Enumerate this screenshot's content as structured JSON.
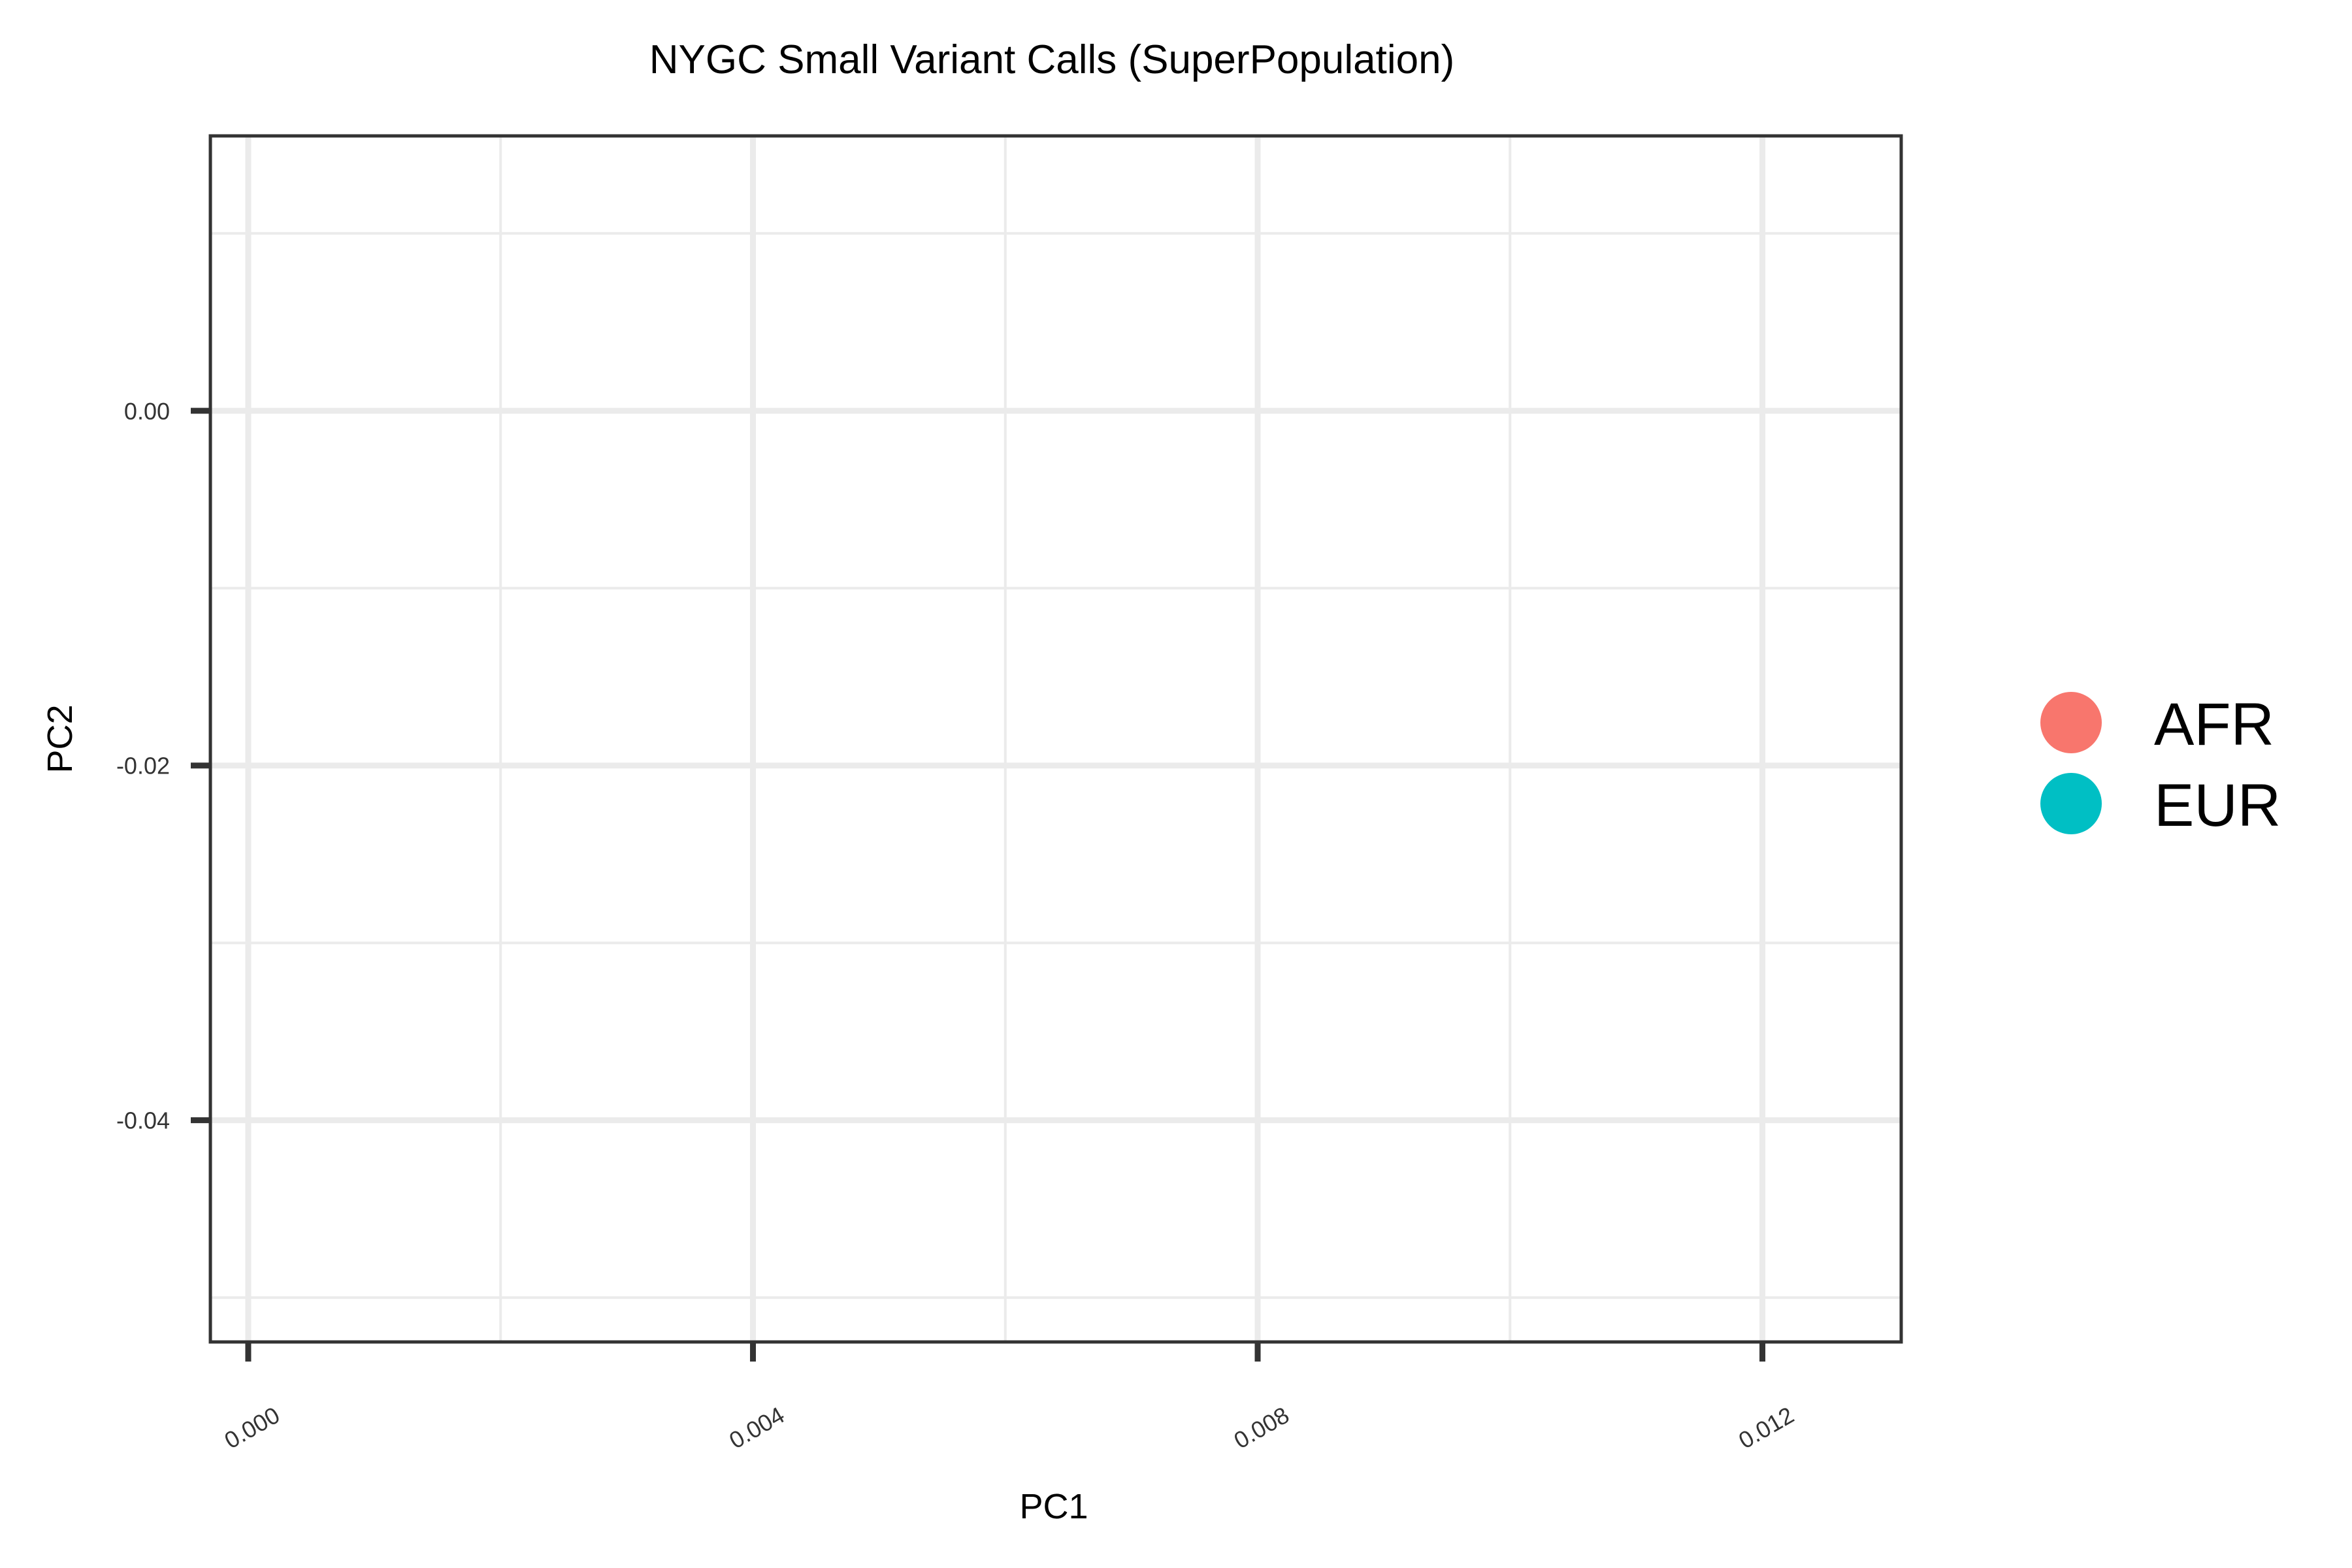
{
  "chart_data": {
    "type": "scatter",
    "title": "NYGC Small Variant Calls (SuperPopulation)",
    "xlabel": "PC1",
    "ylabel": "PC2",
    "xlim": [
      -0.0003,
      0.0131
    ],
    "ylim": [
      -0.0525,
      0.0155
    ],
    "x_ticks": [
      0.0,
      0.004,
      0.008,
      0.012
    ],
    "x_tick_labels": [
      "0.000",
      "0.004",
      "0.008",
      "0.012"
    ],
    "x_minor_ticks": [
      0.002,
      0.006,
      0.01
    ],
    "y_ticks": [
      0.0,
      -0.02,
      -0.04
    ],
    "y_tick_labels": [
      "0.00",
      "-0.02",
      "-0.04"
    ],
    "y_minor_ticks": [
      0.01,
      -0.01,
      -0.03,
      -0.05
    ],
    "grid": true,
    "legend_position": "right",
    "series": [
      {
        "name": "AFR",
        "color": "#F8766D",
        "points": []
      },
      {
        "name": "EUR",
        "color": "#00BFC4",
        "points": []
      }
    ]
  }
}
